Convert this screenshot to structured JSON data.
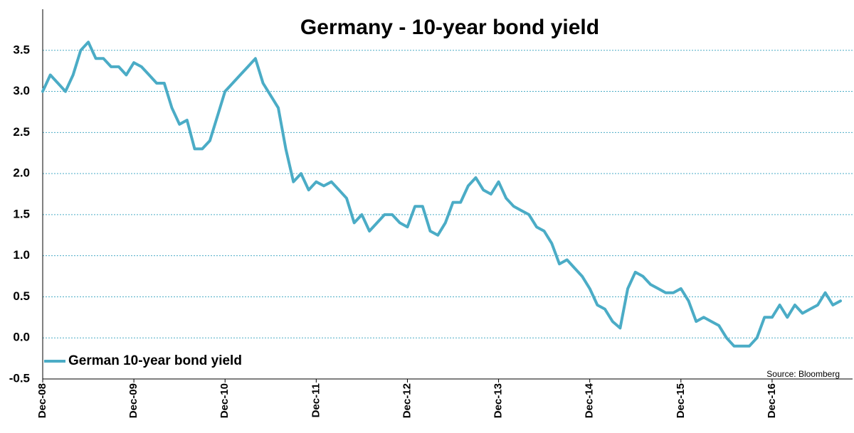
{
  "chart_data": {
    "type": "line",
    "title": "Germany - 10-year bond yield",
    "source": "Source: Bloomberg",
    "categories": [
      "Dec-08",
      null,
      null,
      null,
      null,
      null,
      null,
      null,
      null,
      null,
      null,
      null,
      "Dec-09",
      null,
      null,
      null,
      null,
      null,
      null,
      null,
      null,
      null,
      null,
      null,
      "Dec-10",
      null,
      null,
      null,
      null,
      null,
      null,
      null,
      null,
      null,
      null,
      null,
      "Dec-11",
      null,
      null,
      null,
      null,
      null,
      null,
      null,
      null,
      null,
      null,
      null,
      "Dec-12",
      null,
      null,
      null,
      null,
      null,
      null,
      null,
      null,
      null,
      null,
      null,
      "Dec-13",
      null,
      null,
      null,
      null,
      null,
      null,
      null,
      null,
      null,
      null,
      null,
      "Dec-14",
      null,
      null,
      null,
      null,
      null,
      null,
      null,
      null,
      null,
      null,
      null,
      "Dec-15",
      null,
      null,
      null,
      null,
      null,
      null,
      null,
      null,
      null,
      null,
      null,
      "Dec-16",
      null,
      null,
      null,
      null,
      null,
      null,
      null,
      null,
      null
    ],
    "series": [
      {
        "name": "German 10-year bond yield",
        "color": "#4bacc6",
        "values": [
          3.0,
          3.2,
          3.1,
          3.0,
          3.2,
          3.5,
          3.6,
          3.4,
          3.4,
          3.3,
          3.3,
          3.2,
          3.35,
          3.3,
          3.2,
          3.1,
          3.1,
          2.8,
          2.6,
          2.65,
          2.3,
          2.3,
          2.4,
          2.7,
          3.0,
          3.1,
          3.2,
          3.3,
          3.4,
          3.1,
          2.95,
          2.8,
          2.3,
          1.9,
          2.0,
          1.8,
          1.9,
          1.85,
          1.9,
          1.8,
          1.7,
          1.4,
          1.5,
          1.3,
          1.4,
          1.5,
          1.5,
          1.4,
          1.35,
          1.6,
          1.6,
          1.3,
          1.25,
          1.4,
          1.65,
          1.65,
          1.85,
          1.95,
          1.8,
          1.75,
          1.9,
          1.7,
          1.6,
          1.55,
          1.5,
          1.35,
          1.3,
          1.15,
          0.9,
          0.95,
          0.85,
          0.75,
          0.6,
          0.4,
          0.35,
          0.2,
          0.12,
          0.6,
          0.8,
          0.75,
          0.65,
          0.6,
          0.55,
          0.55,
          0.6,
          0.45,
          0.2,
          0.25,
          0.2,
          0.15,
          0.0,
          -0.1,
          -0.1,
          -0.1,
          0.0,
          0.25,
          0.25,
          0.4,
          0.25,
          0.4,
          0.3,
          0.35,
          0.4,
          0.55,
          0.4,
          0.45
        ]
      }
    ],
    "ylim": [
      -0.5,
      4.0
    ],
    "yticks": [
      -0.5,
      {
        "value": 0,
        "label": "0.0"
      },
      0.5,
      {
        "value": 1,
        "label": "1.0"
      },
      1.5,
      {
        "value": 2,
        "label": "2.0"
      },
      2.5,
      {
        "value": 3,
        "label": "3.0"
      },
      3.5
    ],
    "grid": true,
    "legend": "lower left"
  }
}
